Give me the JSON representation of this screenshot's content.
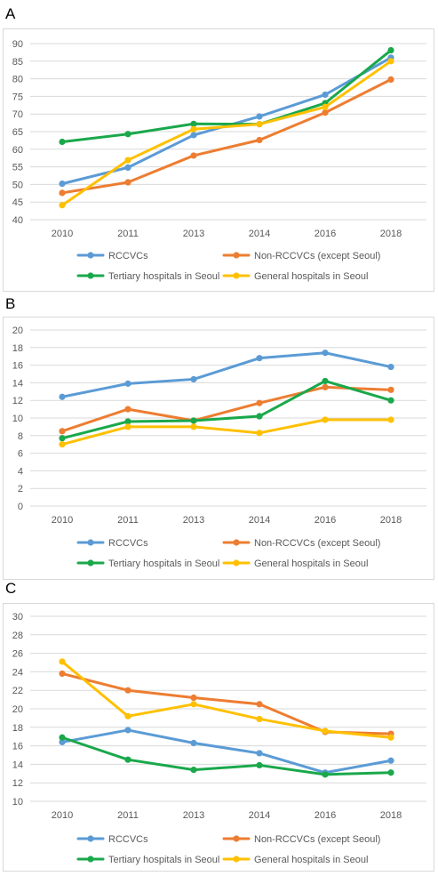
{
  "chart_data": [
    {
      "panel": "A",
      "type": "line",
      "categories": [
        "2010",
        "2011",
        "2013",
        "2014",
        "2016",
        "2018"
      ],
      "ylim": [
        40,
        90
      ],
      "ystep": 5,
      "grid": true,
      "legend_placement": "bottom",
      "series": [
        {
          "name": "RCCVCs",
          "color": "#5b9bd5",
          "values": [
            50.2,
            54.8,
            64.0,
            69.3,
            75.5,
            86.0
          ]
        },
        {
          "name": "Non-RCCVCs (except Seoul)",
          "color": "#ed7d31",
          "values": [
            47.6,
            50.6,
            58.2,
            62.6,
            70.4,
            79.8
          ]
        },
        {
          "name": "Tertiary hospitals in Seoul",
          "color": "#1aa84b",
          "values": [
            62.1,
            64.3,
            67.2,
            67.1,
            73.1,
            88.1
          ]
        },
        {
          "name": "General hospitals in Seoul",
          "color": "#ffc000",
          "values": [
            44.1,
            56.9,
            65.7,
            67.1,
            72.0,
            85.0
          ]
        }
      ]
    },
    {
      "panel": "B",
      "type": "line",
      "categories": [
        "2010",
        "2011",
        "2013",
        "2014",
        "2016",
        "2018"
      ],
      "ylim": [
        0,
        20
      ],
      "ystep": 2,
      "grid": true,
      "legend_placement": "bottom",
      "series": [
        {
          "name": "RCCVCs",
          "color": "#5b9bd5",
          "values": [
            12.4,
            13.9,
            14.4,
            16.8,
            17.4,
            15.8
          ]
        },
        {
          "name": "Non-RCCVCs (except Seoul)",
          "color": "#ed7d31",
          "values": [
            8.5,
            11.0,
            9.7,
            11.7,
            13.5,
            13.2
          ]
        },
        {
          "name": "Tertiary hospitals in Seoul",
          "color": "#1aa84b",
          "values": [
            7.7,
            9.6,
            9.7,
            10.2,
            14.2,
            12.0
          ]
        },
        {
          "name": "General hospitals in Seoul",
          "color": "#ffc000",
          "values": [
            7.0,
            9.0,
            9.0,
            8.3,
            9.8,
            9.8
          ]
        }
      ]
    },
    {
      "panel": "C",
      "type": "line",
      "categories": [
        "2010",
        "2011",
        "2013",
        "2014",
        "2016",
        "2018"
      ],
      "ylim": [
        10,
        30
      ],
      "ystep": 2,
      "grid": true,
      "legend_placement": "bottom",
      "series": [
        {
          "name": "RCCVCs",
          "color": "#5b9bd5",
          "values": [
            16.4,
            17.7,
            16.3,
            15.2,
            13.1,
            14.4
          ]
        },
        {
          "name": "Non-RCCVCs (except Seoul)",
          "color": "#ed7d31",
          "values": [
            23.8,
            22.0,
            21.2,
            20.5,
            17.5,
            17.3
          ]
        },
        {
          "name": "Tertiary hospitals in Seoul",
          "color": "#1aa84b",
          "values": [
            16.9,
            14.5,
            13.4,
            13.9,
            12.9,
            13.1
          ]
        },
        {
          "name": "General hospitals in Seoul",
          "color": "#ffc000",
          "values": [
            25.1,
            19.2,
            20.5,
            18.9,
            17.6,
            16.9
          ]
        }
      ]
    }
  ]
}
